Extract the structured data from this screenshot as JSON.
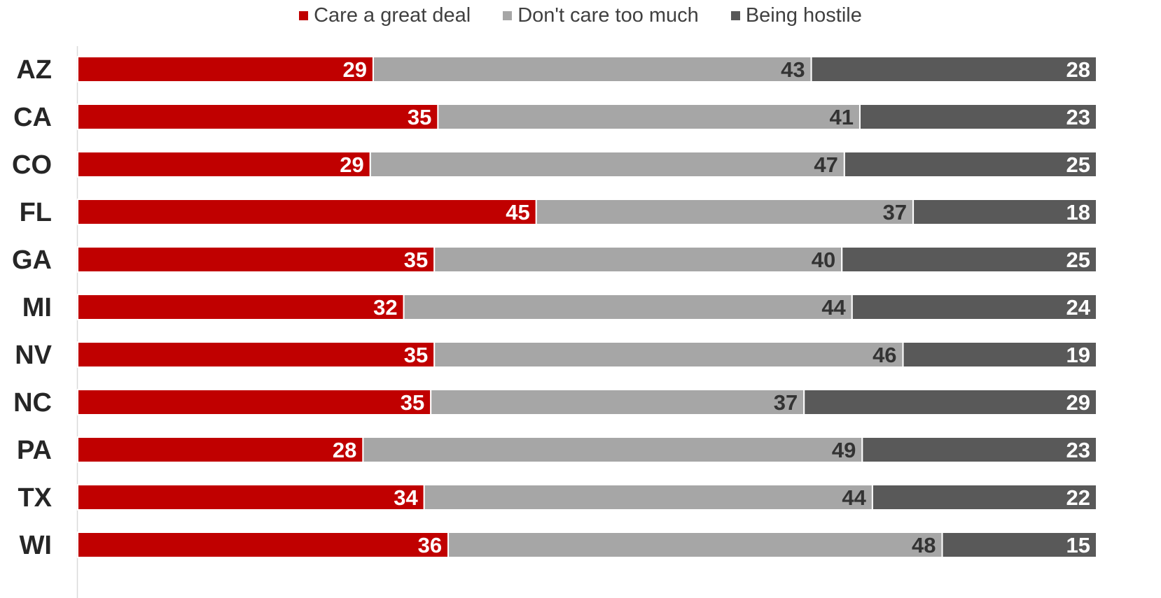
{
  "chart_data": {
    "type": "bar",
    "orientation": "horizontal",
    "stacked": true,
    "title": "",
    "xlabel": "",
    "ylabel": "",
    "categories": [
      "AZ",
      "CA",
      "CO",
      "FL",
      "GA",
      "MI",
      "NV",
      "NC",
      "PA",
      "TX",
      "WI"
    ],
    "series": [
      {
        "name": "Care a great deal",
        "color": "#c00000",
        "label_color": "#ffffff",
        "values": [
          29,
          35,
          29,
          45,
          35,
          32,
          35,
          35,
          28,
          34,
          36
        ]
      },
      {
        "name": "Don't care too much",
        "color": "#a6a6a6",
        "label_color": "#333333",
        "values": [
          43,
          41,
          47,
          37,
          40,
          44,
          46,
          37,
          49,
          44,
          48
        ]
      },
      {
        "name": "Being hostile",
        "color": "#595959",
        "label_color": "#ffffff",
        "values": [
          28,
          23,
          25,
          18,
          25,
          24,
          19,
          29,
          23,
          22,
          15
        ]
      }
    ],
    "legend_position": "top-center",
    "grid": false,
    "data_labels": true
  }
}
